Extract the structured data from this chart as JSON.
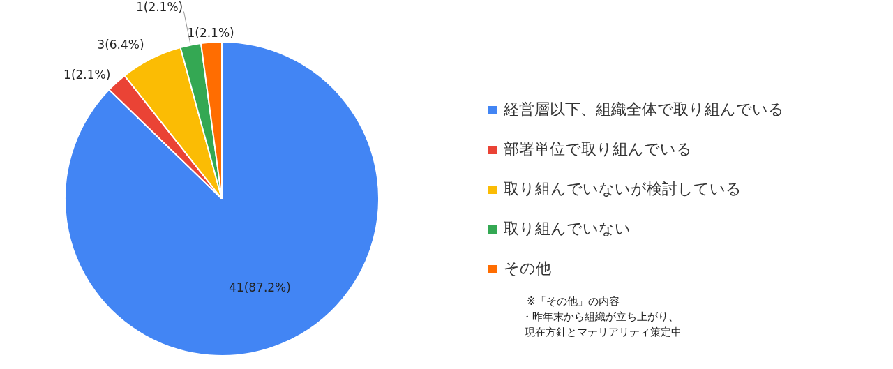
{
  "chart_data": {
    "type": "pie",
    "categories": [
      "経営層以下、組織全体で取り組んでいる",
      "部署単位で取り組んでいる",
      "取り組んでいないが検討している",
      "取り組んでいない",
      "その他"
    ],
    "values": [
      41,
      1,
      3,
      1,
      1
    ],
    "colors": [
      "#4285f4",
      "#ea4335",
      "#fbbc04",
      "#34a853",
      "#ff6d01"
    ],
    "value_labels": [
      "41(87.2%)",
      "1(2.1%)",
      "3(6.4%)",
      "1(2.1%)",
      "1(2.1%)"
    ],
    "legend": "right",
    "annotations": [
      "※「その他」の内容",
      "・昨年末から組織が立ち上がり、",
      "現在方針とマテリアリティ策定中"
    ]
  }
}
